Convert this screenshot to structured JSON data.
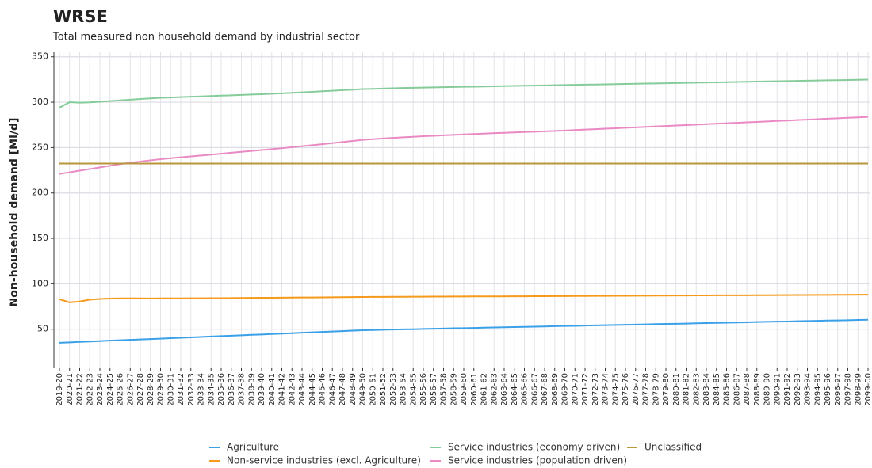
{
  "chart_data": {
    "type": "line",
    "title": "WRSE",
    "subtitle": "Total measured non household demand by industrial sector",
    "y_label": "Non-household demand [Ml/d]",
    "grid": true,
    "legend": "bottom",
    "ylim": [
      7,
      355
    ],
    "yticks": [
      50,
      100,
      150,
      200,
      250,
      300,
      350
    ],
    "categories": [
      "2019-20",
      "2020-21",
      "2021-22",
      "2022-23",
      "2023-24",
      "2024-25",
      "2025-26",
      "2026-27",
      "2027-28",
      "2028-29",
      "2029-30",
      "2030-31",
      "2031-32",
      "2032-33",
      "2033-34",
      "2034-35",
      "2035-36",
      "2036-37",
      "2037-38",
      "2038-39",
      "2039-40",
      "2040-41",
      "2041-42",
      "2042-43",
      "2043-44",
      "2044-45",
      "2045-46",
      "2046-47",
      "2047-48",
      "2048-49",
      "2049-50",
      "2050-51",
      "2051-52",
      "2052-53",
      "2053-54",
      "2054-55",
      "2055-56",
      "2056-57",
      "2057-58",
      "2058-59",
      "2059-60",
      "2060-61",
      "2061-62",
      "2062-63",
      "2063-64",
      "2064-65",
      "2065-66",
      "2066-67",
      "2067-68",
      "2068-69",
      "2069-70",
      "2070-71",
      "2071-72",
      "2072-73",
      "2073-74",
      "2074-75",
      "2075-76",
      "2076-77",
      "2077-78",
      "2078-79",
      "2079-80",
      "2080-81",
      "2081-82",
      "2082-83",
      "2083-84",
      "2084-85",
      "2085-86",
      "2086-87",
      "2087-88",
      "2088-89",
      "2089-90",
      "2090-91",
      "2091-92",
      "2092-93",
      "2093-94",
      "2094-95",
      "2095-96",
      "2096-97",
      "2097-98",
      "2098-99",
      "2099-00"
    ],
    "series": [
      {
        "name": "Agriculture",
        "color": "#3aa0e8",
        "values": [
          35.0,
          35.5,
          36.0,
          36.4,
          36.9,
          37.4,
          37.8,
          38.3,
          38.7,
          39.2,
          39.6,
          40.1,
          40.6,
          41.0,
          41.5,
          42.0,
          42.4,
          42.9,
          43.3,
          43.8,
          44.2,
          44.7,
          45.2,
          45.6,
          46.1,
          46.6,
          47.0,
          47.5,
          47.9,
          48.4,
          48.9,
          49.1,
          49.4,
          49.6,
          49.8,
          50.0,
          50.3,
          50.5,
          50.7,
          51.0,
          51.2,
          51.4,
          51.7,
          51.9,
          52.1,
          52.3,
          52.6,
          52.8,
          53.0,
          53.3,
          53.5,
          53.7,
          54.0,
          54.2,
          54.4,
          54.6,
          54.9,
          55.1,
          55.3,
          55.6,
          55.8,
          56.0,
          56.2,
          56.5,
          56.7,
          56.9,
          57.2,
          57.4,
          57.6,
          57.9,
          58.1,
          58.3,
          58.5,
          58.8,
          59.0,
          59.2,
          59.5,
          59.7,
          59.9,
          60.2,
          60.4
        ]
      },
      {
        "name": "Non-service industries (excl. Agriculture)",
        "color": "#f59a1b",
        "values": [
          83.0,
          79.5,
          80.5,
          82.5,
          83.3,
          83.8,
          84.0,
          84.0,
          84.0,
          83.9,
          84.0,
          84.0,
          84.0,
          84.1,
          84.1,
          84.2,
          84.2,
          84.3,
          84.4,
          84.5,
          84.6,
          84.6,
          84.7,
          84.8,
          84.9,
          85.0,
          85.1,
          85.2,
          85.3,
          85.4,
          85.5,
          85.6,
          85.6,
          85.7,
          85.7,
          85.8,
          85.8,
          85.9,
          85.9,
          86.0,
          86.0,
          86.1,
          86.1,
          86.2,
          86.2,
          86.3,
          86.3,
          86.4,
          86.4,
          86.5,
          86.5,
          86.6,
          86.6,
          86.7,
          86.7,
          86.8,
          86.8,
          86.9,
          86.9,
          87.0,
          87.0,
          87.1,
          87.1,
          87.2,
          87.2,
          87.3,
          87.3,
          87.4,
          87.4,
          87.5,
          87.5,
          87.6,
          87.6,
          87.7,
          87.7,
          87.8,
          87.8,
          87.9,
          87.9,
          88.0,
          88.0
        ]
      },
      {
        "name": "Service industries (economy driven)",
        "color": "#86cc9a",
        "values": [
          294,
          300,
          299.5,
          299.8,
          300.5,
          301.2,
          302,
          302.8,
          303.5,
          304.2,
          304.8,
          305.2,
          305.6,
          306,
          306.4,
          306.8,
          307.2,
          307.6,
          308,
          308.4,
          308.8,
          309.3,
          309.8,
          310.3,
          310.8,
          311.4,
          312,
          312.6,
          313.2,
          313.8,
          314.4,
          314.7,
          315.0,
          315.3,
          315.6,
          315.9,
          316.1,
          316.3,
          316.5,
          316.7,
          316.9,
          317.1,
          317.3,
          317.5,
          317.7,
          317.9,
          318.1,
          318.3,
          318.5,
          318.7,
          318.9,
          319.1,
          319.3,
          319.5,
          319.7,
          319.9,
          320.1,
          320.3,
          320.5,
          320.7,
          320.9,
          321.1,
          321.3,
          321.5,
          321.7,
          321.9,
          322.1,
          322.3,
          322.5,
          322.7,
          322.9,
          323.1,
          323.3,
          323.5,
          323.7,
          323.9,
          324.1,
          324.3,
          324.5,
          324.7,
          324.9
        ]
      },
      {
        "name": "Service industries (population driven)",
        "color": "#ea8ac4",
        "values": [
          221,
          222.8,
          224.6,
          226.4,
          228.2,
          230,
          231.8,
          233.3,
          234.7,
          236,
          237.2,
          238.3,
          239.3,
          240.3,
          241.3,
          242.3,
          243.3,
          244.3,
          245.3,
          246.3,
          247.3,
          248.3,
          249.3,
          250.4,
          251.5,
          252.6,
          253.7,
          254.9,
          256.1,
          257.3,
          258.5,
          259.3,
          260,
          260.7,
          261.3,
          261.9,
          262.5,
          263,
          263.5,
          264,
          264.5,
          265,
          265.4,
          265.9,
          266.3,
          266.7,
          267.1,
          267.5,
          267.9,
          268.3,
          268.8,
          269.3,
          269.8,
          270.3,
          270.8,
          271.3,
          271.8,
          272.3,
          272.8,
          273.3,
          273.8,
          274.3,
          274.8,
          275.3,
          275.8,
          276.3,
          276.8,
          277.3,
          277.8,
          278.3,
          278.8,
          279.3,
          279.8,
          280.3,
          280.8,
          281.3,
          281.8,
          282.3,
          282.8,
          283.3,
          283.8
        ]
      },
      {
        "name": "Unclassified",
        "color": "#b8963a",
        "values": [
          232.5,
          232.5,
          232.5,
          232.5,
          232.5,
          232.5,
          232.5,
          232.5,
          232.5,
          232.5,
          232.5,
          232.5,
          232.5,
          232.5,
          232.5,
          232.5,
          232.5,
          232.5,
          232.5,
          232.5,
          232.5,
          232.5,
          232.5,
          232.5,
          232.5,
          232.5,
          232.5,
          232.5,
          232.5,
          232.5,
          232.5,
          232.5,
          232.5,
          232.5,
          232.5,
          232.5,
          232.5,
          232.5,
          232.5,
          232.5,
          232.5,
          232.5,
          232.5,
          232.5,
          232.5,
          232.5,
          232.5,
          232.5,
          232.5,
          232.5,
          232.5,
          232.5,
          232.5,
          232.5,
          232.5,
          232.5,
          232.5,
          232.5,
          232.5,
          232.5,
          232.5,
          232.5,
          232.5,
          232.5,
          232.5,
          232.5,
          232.5,
          232.5,
          232.5,
          232.5,
          232.5,
          232.5,
          232.5,
          232.5,
          232.5,
          232.5,
          232.5,
          232.5,
          232.5,
          232.5,
          232.5
        ]
      }
    ]
  }
}
